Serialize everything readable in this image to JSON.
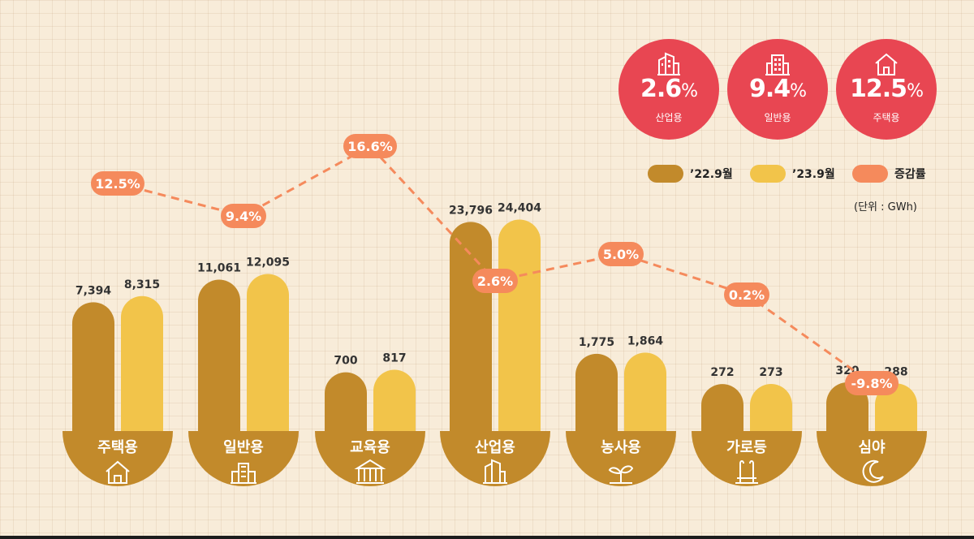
{
  "chart_data": {
    "type": "bar",
    "categories": [
      "주택용",
      "일반용",
      "교육용",
      "산업용",
      "농사용",
      "가로등",
      "심야"
    ],
    "category_icons": [
      "house-icon",
      "office-building-icon",
      "school-icon",
      "factory-icon",
      "sprout-icon",
      "streetlight-icon",
      "moon-icon"
    ],
    "series": [
      {
        "name": "’22.9월",
        "values": [
          7394,
          11061,
          700,
          23796,
          1775,
          272,
          320
        ],
        "labels": [
          "7,394",
          "11,061",
          "700",
          "23,796",
          "1,775",
          "272",
          "320"
        ],
        "color": "#c28a2b"
      },
      {
        "name": "’23.9월",
        "values": [
          8315,
          12095,
          817,
          24404,
          1864,
          273,
          288
        ],
        "labels": [
          "8,315",
          "12,095",
          "817",
          "24,404",
          "1,864",
          "273",
          "288"
        ],
        "color": "#f2c44a"
      }
    ],
    "rate": {
      "name": "증감률",
      "values": [
        12.5,
        9.4,
        16.6,
        2.6,
        5.0,
        0.2,
        -9.8
      ],
      "labels": [
        "12.5%",
        "9.4%",
        "16.6%",
        "2.6%",
        "5.0%",
        "0.2%",
        "-9.8%"
      ],
      "color": "#f58a5c"
    },
    "unit": "(단위 : GWh)",
    "legend_position": "right"
  },
  "badges": [
    {
      "value": "2.6",
      "unit": "%",
      "label": "산업용",
      "icon": "factory-icon"
    },
    {
      "value": "9.4",
      "unit": "%",
      "label": "일반용",
      "icon": "office-building-icon"
    },
    {
      "value": "12.5",
      "unit": "%",
      "label": "주택용",
      "icon": "house-icon"
    }
  ],
  "colors": {
    "badge": "#e84652",
    "bowl": "#c28a2b",
    "series_2022": "#c28a2b",
    "series_2023": "#f2c44a",
    "rate_line": "#f58a5c"
  }
}
